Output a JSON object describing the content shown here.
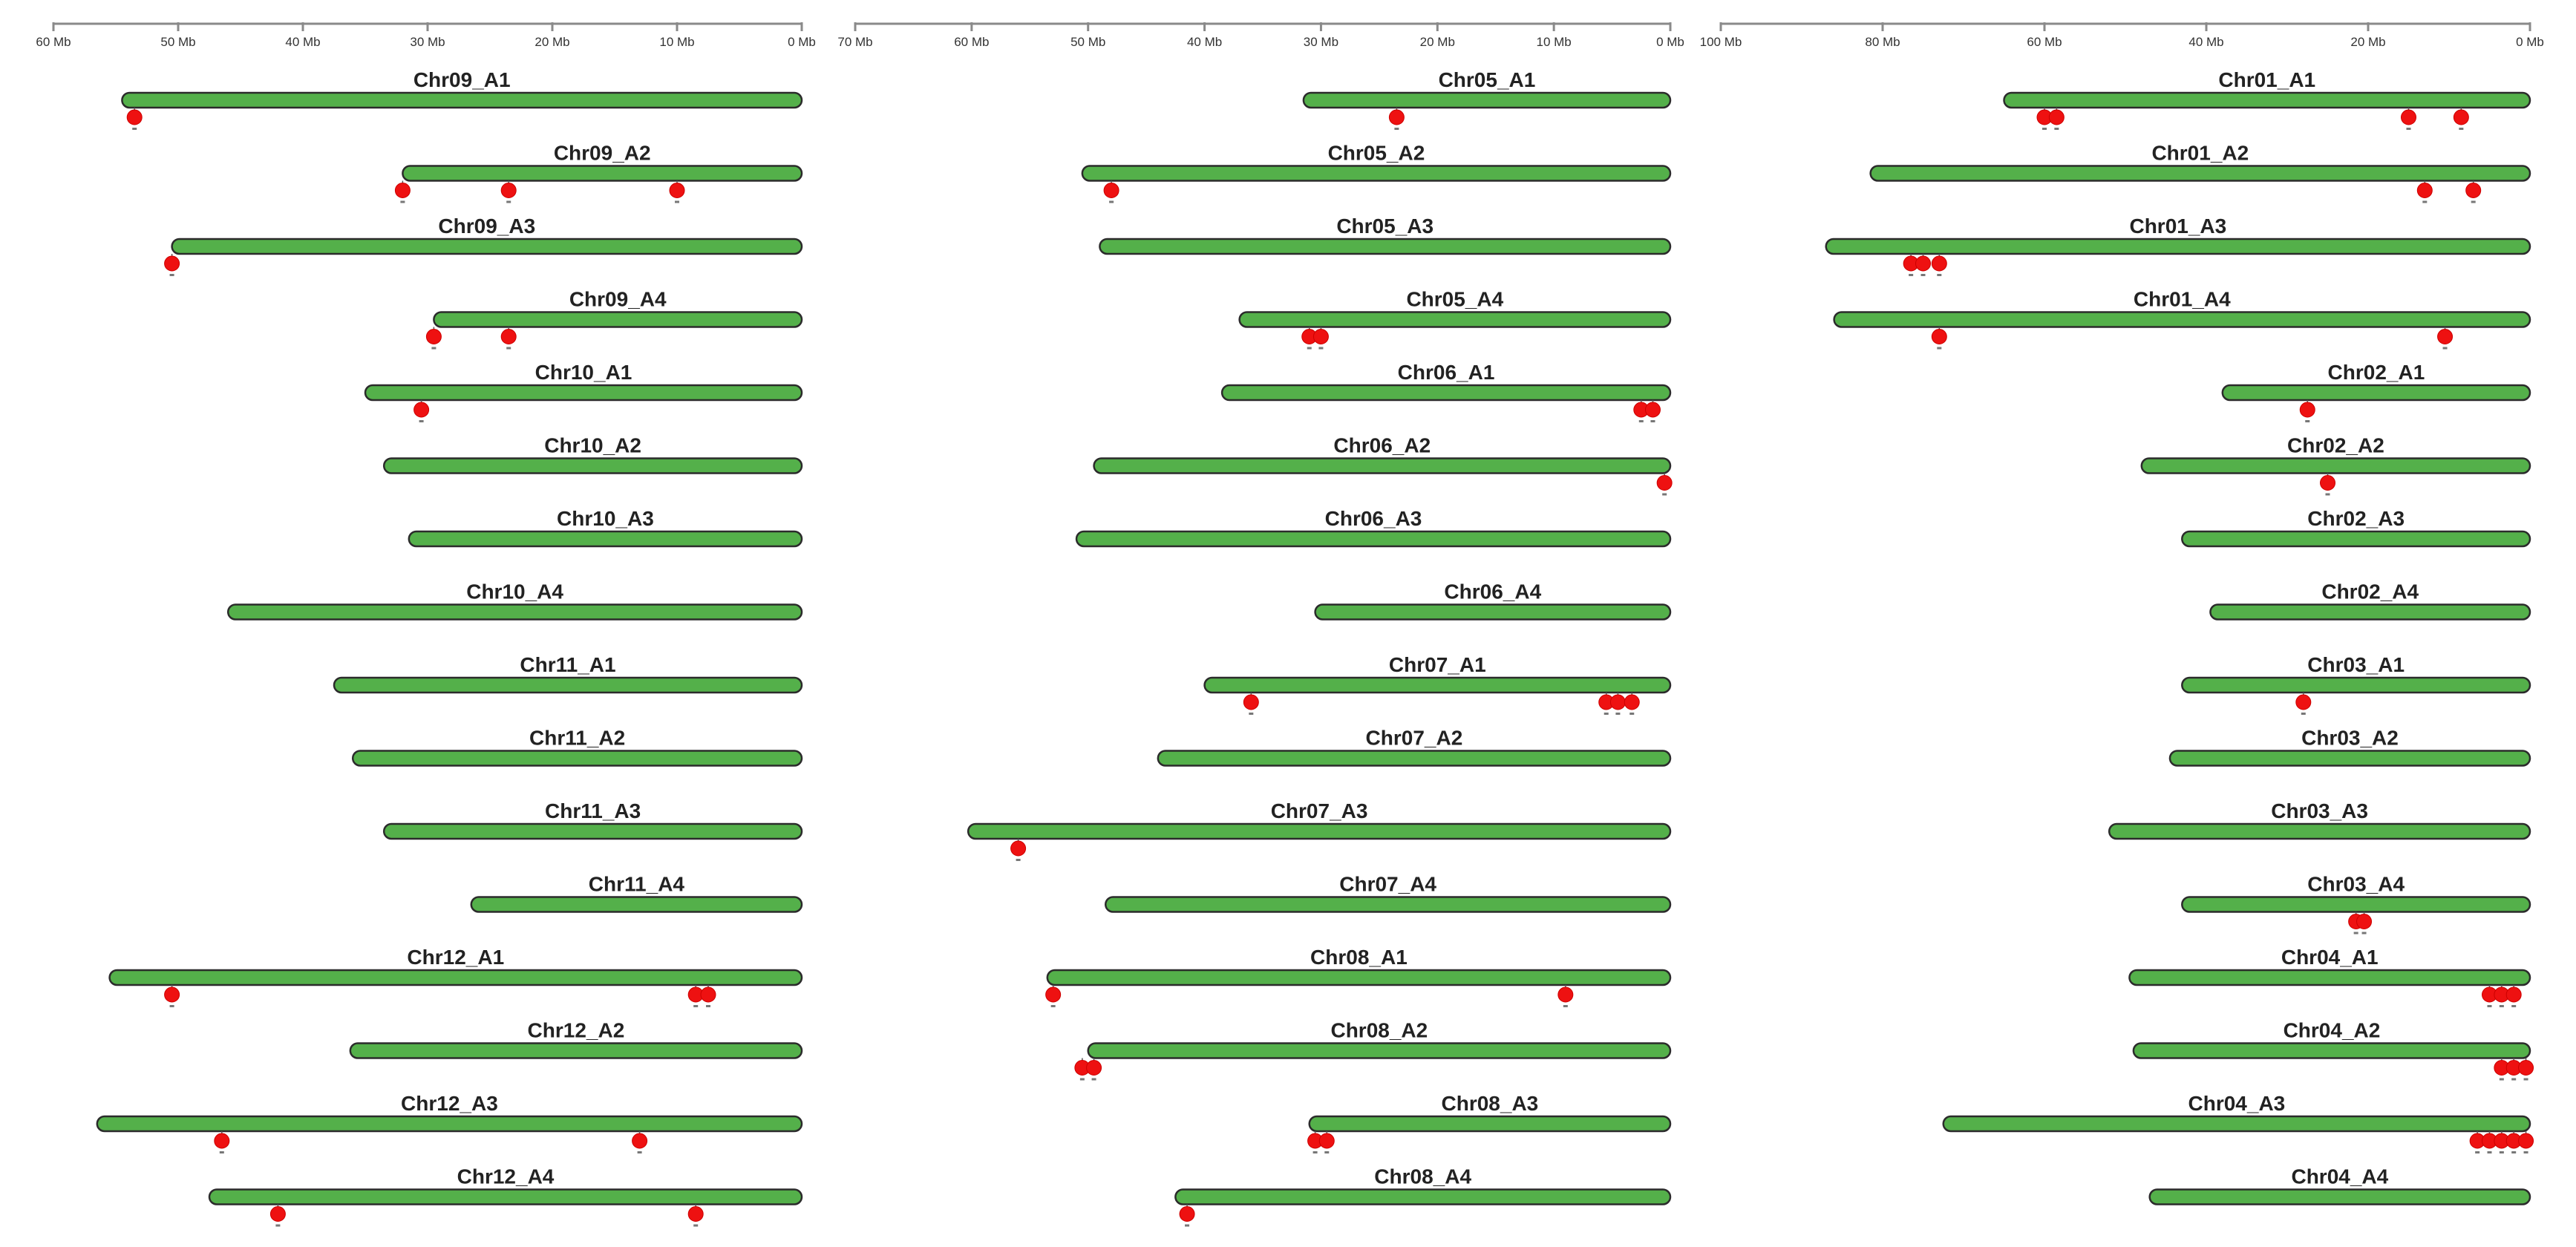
{
  "colors": {
    "chromosome_fill": "#54b04a",
    "chromosome_edge": "#2b2b2b",
    "gene_marker": "#ee1111",
    "axis": "#8a8a8a",
    "background": "#ffffff"
  },
  "chart_data": [
    {
      "type": "diagram",
      "unit": "Mb",
      "axis_range": [
        60,
        0
      ],
      "ticks": [
        "60 Mb",
        "50 Mb",
        "40 Mb",
        "30 Mb",
        "20 Mb",
        "10 Mb",
        "0 Mb"
      ],
      "tick_values": [
        60,
        50,
        40,
        30,
        20,
        10,
        0
      ],
      "chromosomes": [
        {
          "name": "Chr09_A1",
          "length": 54.5,
          "genes": [
            53.5
          ]
        },
        {
          "name": "Chr09_A2",
          "length": 32,
          "genes": [
            32,
            23.5,
            10
          ]
        },
        {
          "name": "Chr09_A3",
          "length": 50.5,
          "genes": [
            50.5
          ]
        },
        {
          "name": "Chr09_A4",
          "length": 29.5,
          "genes": [
            29.5,
            23.5
          ]
        },
        {
          "name": "Chr10_A1",
          "length": 35,
          "genes": [
            30.5
          ]
        },
        {
          "name": "Chr10_A2",
          "length": 33.5,
          "genes": []
        },
        {
          "name": "Chr10_A3",
          "length": 31.5,
          "genes": []
        },
        {
          "name": "Chr10_A4",
          "length": 46,
          "genes": []
        },
        {
          "name": "Chr11_A1",
          "length": 37.5,
          "genes": []
        },
        {
          "name": "Chr11_A2",
          "length": 36,
          "genes": []
        },
        {
          "name": "Chr11_A3",
          "length": 33.5,
          "genes": []
        },
        {
          "name": "Chr11_A4",
          "length": 26.5,
          "genes": []
        },
        {
          "name": "Chr12_A1",
          "length": 55.5,
          "genes": [
            50.5,
            8.5,
            7.5
          ]
        },
        {
          "name": "Chr12_A2",
          "length": 36.2,
          "genes": []
        },
        {
          "name": "Chr12_A3",
          "length": 56.5,
          "genes": [
            46.5,
            13
          ]
        },
        {
          "name": "Chr12_A4",
          "length": 47.5,
          "genes": [
            42,
            8.5
          ]
        }
      ]
    },
    {
      "type": "diagram",
      "unit": "Mb",
      "axis_range": [
        70,
        0
      ],
      "ticks": [
        "70 Mb",
        "60 Mb",
        "50 Mb",
        "40 Mb",
        "30 Mb",
        "20 Mb",
        "10 Mb",
        "0 Mb"
      ],
      "tick_values": [
        70,
        60,
        50,
        40,
        30,
        20,
        10,
        0
      ],
      "chromosomes": [
        {
          "name": "Chr05_A1",
          "length": 31.5,
          "genes": [
            23.5
          ]
        },
        {
          "name": "Chr05_A2",
          "length": 50.5,
          "genes": [
            48
          ]
        },
        {
          "name": "Chr05_A3",
          "length": 49,
          "genes": []
        },
        {
          "name": "Chr05_A4",
          "length": 37,
          "genes": [
            31,
            30
          ]
        },
        {
          "name": "Chr06_A1",
          "length": 38.5,
          "genes": [
            2.5,
            1.5
          ]
        },
        {
          "name": "Chr06_A2",
          "length": 49.5,
          "genes": [
            0.5
          ]
        },
        {
          "name": "Chr06_A3",
          "length": 51,
          "genes": []
        },
        {
          "name": "Chr06_A4",
          "length": 30.5,
          "genes": []
        },
        {
          "name": "Chr07_A1",
          "length": 40,
          "genes": [
            36,
            5.5,
            4.5,
            3.3
          ]
        },
        {
          "name": "Chr07_A2",
          "length": 44,
          "genes": []
        },
        {
          "name": "Chr07_A3",
          "length": 60.3,
          "genes": [
            56
          ]
        },
        {
          "name": "Chr07_A4",
          "length": 48.5,
          "genes": []
        },
        {
          "name": "Chr08_A1",
          "length": 53.5,
          "genes": [
            53,
            9
          ]
        },
        {
          "name": "Chr08_A2",
          "length": 50,
          "genes": [
            50.5,
            49.5
          ]
        },
        {
          "name": "Chr08_A3",
          "length": 31,
          "genes": [
            30.5,
            29.5
          ]
        },
        {
          "name": "Chr08_A4",
          "length": 42.5,
          "genes": [
            41.5
          ]
        }
      ]
    },
    {
      "type": "diagram",
      "unit": "Mb",
      "axis_range": [
        100,
        0
      ],
      "ticks": [
        "100 Mb",
        "80 Mb",
        "60 Mb",
        "40 Mb",
        "20 Mb",
        "0 Mb"
      ],
      "tick_values": [
        100,
        80,
        60,
        40,
        20,
        0
      ],
      "chromosomes": [
        {
          "name": "Chr01_A1",
          "length": 65,
          "genes": [
            60,
            58.5,
            15,
            8.5
          ]
        },
        {
          "name": "Chr01_A2",
          "length": 81.5,
          "genes": [
            13,
            7
          ]
        },
        {
          "name": "Chr01_A3",
          "length": 87,
          "genes": [
            76.5,
            75,
            73
          ]
        },
        {
          "name": "Chr01_A4",
          "length": 86,
          "genes": [
            73,
            10.5
          ]
        },
        {
          "name": "Chr02_A1",
          "length": 38,
          "genes": [
            27.5
          ]
        },
        {
          "name": "Chr02_A2",
          "length": 48,
          "genes": [
            25
          ]
        },
        {
          "name": "Chr02_A3",
          "length": 43,
          "genes": []
        },
        {
          "name": "Chr02_A4",
          "length": 39.5,
          "genes": []
        },
        {
          "name": "Chr03_A1",
          "length": 43,
          "genes": [
            28
          ]
        },
        {
          "name": "Chr03_A2",
          "length": 44.5,
          "genes": []
        },
        {
          "name": "Chr03_A3",
          "length": 52,
          "genes": []
        },
        {
          "name": "Chr03_A4",
          "length": 43,
          "genes": [
            21.5,
            20.5
          ]
        },
        {
          "name": "Chr04_A1",
          "length": 49.5,
          "genes": [
            5,
            3.5,
            2
          ]
        },
        {
          "name": "Chr04_A2",
          "length": 49,
          "genes": [
            3.5,
            2,
            0.5
          ]
        },
        {
          "name": "Chr04_A3",
          "length": 72.5,
          "genes": [
            6.5,
            5,
            3.5,
            2,
            0.5
          ]
        },
        {
          "name": "Chr04_A4",
          "length": 47,
          "genes": []
        }
      ]
    }
  ]
}
